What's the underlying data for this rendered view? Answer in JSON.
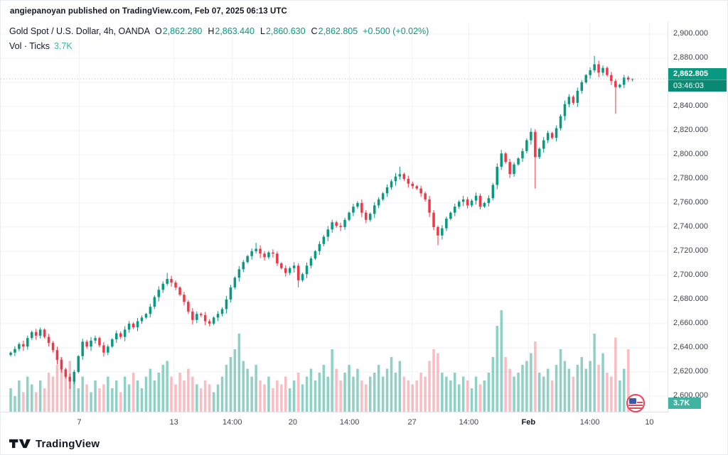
{
  "attribution": "angiepanoyan published on TradingView.com, Feb 07, 2025 06:13 UTC",
  "legend": {
    "title": "Gold Spot / U.S. Dollar, 4h, OANDA",
    "ohlc": [
      {
        "k": "O",
        "v": "2,862.280"
      },
      {
        "k": "H",
        "v": "2,863.440"
      },
      {
        "k": "L",
        "v": "2,860.630"
      },
      {
        "k": "C",
        "v": "2,862.805"
      }
    ],
    "change": "+0.500 (+0.02%)",
    "vol_label": "Vol · Ticks",
    "vol_value": "3.7K"
  },
  "badges": {
    "last_price": "2,862.805",
    "countdown": "03:46:03",
    "volume": "3.7K"
  },
  "price_axis": {
    "ticks": [
      {
        "label": "2,900.000",
        "value": 2900
      },
      {
        "label": "2,880.000",
        "value": 2880
      },
      {
        "label": "2,860.000",
        "value": 2860
      },
      {
        "label": "2,840.000",
        "value": 2840
      },
      {
        "label": "2,820.000",
        "value": 2820
      },
      {
        "label": "2,800.000",
        "value": 2800
      },
      {
        "label": "2,780.000",
        "value": 2780
      },
      {
        "label": "2,760.000",
        "value": 2760
      },
      {
        "label": "2,740.000",
        "value": 2740
      },
      {
        "label": "2,720.000",
        "value": 2720
      },
      {
        "label": "2,700.000",
        "value": 2700
      },
      {
        "label": "2,680.000",
        "value": 2680
      },
      {
        "label": "2,660.000",
        "value": 2660
      },
      {
        "label": "2,640.000",
        "value": 2640
      },
      {
        "label": "2,620.000",
        "value": 2620
      },
      {
        "label": "2,600.000",
        "value": 2600
      }
    ]
  },
  "time_axis": {
    "ticks": [
      {
        "label": "7",
        "i": 16.2,
        "bold": false
      },
      {
        "label": "13",
        "i": 38.6,
        "bold": false
      },
      {
        "label": "14:00",
        "i": 52.4,
        "bold": false
      },
      {
        "label": "20",
        "i": 66.7,
        "bold": false
      },
      {
        "label": "14:00",
        "i": 80.1,
        "bold": false
      },
      {
        "label": "27",
        "i": 94.9,
        "bold": false
      },
      {
        "label": "14:00",
        "i": 108.3,
        "bold": false
      },
      {
        "label": "Feb",
        "i": 122.4,
        "bold": true
      },
      {
        "label": "14:00",
        "i": 136.9,
        "bold": false
      },
      {
        "label": "10",
        "i": 151,
        "bold": false
      }
    ]
  },
  "footer": {
    "brand": "TradingView"
  },
  "colors": {
    "up": "#089981",
    "down": "#f23645",
    "vol_up": "rgba(8,153,129,0.45)",
    "vol_down": "rgba(242,54,69,0.33)",
    "grid": "#eef1f7",
    "axis_border": "#e0e3eb",
    "text": "#131722",
    "axis_text": "#40444f",
    "badge_bg": "#089981",
    "vol_badge_bg": "#41b3a3",
    "price_line": "#b8bcc4"
  },
  "chart_data": {
    "type": "candlestick",
    "symbol": "Gold Spot / U.S. Dollar",
    "interval": "4h",
    "exchange": "OANDA",
    "title": "Gold Spot / U.S. Dollar, 4h, OANDA",
    "legend_position": "top-left",
    "grid": true,
    "last": {
      "open": 2862.28,
      "high": 2863.44,
      "low": 2860.63,
      "close": 2862.805,
      "change": 0.5,
      "change_pct": 0.02
    },
    "volume_last_ticks": "3.7K",
    "price_scale": {
      "min": 2587,
      "max": 2910,
      "grid_from": 2600,
      "grid_to": 2900,
      "grid_step": 20
    },
    "x_range_labels": [
      "7",
      "13",
      "20",
      "27",
      "Feb",
      "10"
    ],
    "first_open": 2634,
    "closes": [
      2636,
      2639,
      2643,
      2641,
      2648,
      2653,
      2650,
      2655,
      2649,
      2644,
      2638,
      2630,
      2622,
      2616,
      2612,
      2620,
      2633,
      2645,
      2641,
      2646,
      2648,
      2642,
      2636,
      2641,
      2647,
      2652,
      2649,
      2655,
      2660,
      2657,
      2662,
      2665,
      2668,
      2674,
      2682,
      2688,
      2693,
      2697,
      2694,
      2690,
      2684,
      2678,
      2670,
      2663,
      2668,
      2667,
      2662,
      2660,
      2665,
      2668,
      2672,
      2680,
      2690,
      2698,
      2705,
      2711,
      2716,
      2720,
      2722,
      2718,
      2715,
      2719,
      2718,
      2710,
      2706,
      2702,
      2706,
      2708,
      2696,
      2701,
      2708,
      2714,
      2720,
      2726,
      2732,
      2738,
      2744,
      2741,
      2740,
      2746,
      2752,
      2757,
      2760,
      2752,
      2746,
      2751,
      2758,
      2763,
      2768,
      2773,
      2778,
      2782,
      2784,
      2780,
      2776,
      2774,
      2772,
      2768,
      2763,
      2752,
      2740,
      2733,
      2739,
      2747,
      2752,
      2757,
      2761,
      2763,
      2758,
      2762,
      2766,
      2757,
      2760,
      2764,
      2775,
      2790,
      2801,
      2794,
      2784,
      2792,
      2797,
      2803,
      2812,
      2819,
      2798,
      2805,
      2812,
      2818,
      2814,
      2822,
      2832,
      2842,
      2848,
      2843,
      2853,
      2860,
      2866,
      2870,
      2875,
      2868,
      2872,
      2866,
      2861,
      2856,
      2858,
      2864,
      2862.3,
      2862.805
    ],
    "volumes_k": [
      6,
      4,
      8,
      5,
      9,
      7,
      5,
      8,
      6,
      10,
      9,
      12,
      14,
      11,
      13,
      8,
      6,
      9,
      7,
      5,
      8,
      6,
      7,
      9,
      6,
      8,
      5,
      9,
      7,
      10,
      8,
      6,
      9,
      11,
      8,
      10,
      12,
      13,
      9,
      7,
      10,
      8,
      11,
      9,
      7,
      6,
      8,
      7,
      5,
      7,
      9,
      12,
      14,
      16,
      20,
      13,
      11,
      9,
      12,
      8,
      7,
      9,
      6,
      8,
      7,
      9,
      6,
      8,
      10,
      7,
      9,
      11,
      8,
      10,
      12,
      9,
      16,
      11,
      8,
      10,
      12,
      9,
      11,
      8,
      7,
      9,
      10,
      12,
      9,
      11,
      14,
      10,
      13,
      9,
      8,
      7,
      8,
      10,
      9,
      13,
      16,
      15,
      10,
      9,
      8,
      10,
      7,
      9,
      8,
      6,
      9,
      7,
      8,
      10,
      14,
      22,
      26,
      14,
      11,
      9,
      10,
      12,
      13,
      15,
      18,
      10,
      9,
      11,
      8,
      12,
      16,
      13,
      11,
      9,
      12,
      14,
      11,
      13,
      20,
      12,
      15,
      10,
      9,
      19,
      8,
      11,
      16,
      3.7
    ],
    "volume_scale_max_k": 30,
    "wick_overrides": {
      "14": {
        "low": 2606
      },
      "37": {
        "high": 2702
      },
      "58": {
        "high": 2727
      },
      "68": {
        "low": 2690
      },
      "92": {
        "high": 2790
      },
      "101": {
        "low": 2725
      },
      "116": {
        "high": 2804
      },
      "124": {
        "low": 2772
      },
      "138": {
        "high": 2882
      },
      "143": {
        "low": 2834
      },
      "147": {
        "high": 2863.44,
        "low": 2860.63
      }
    }
  }
}
